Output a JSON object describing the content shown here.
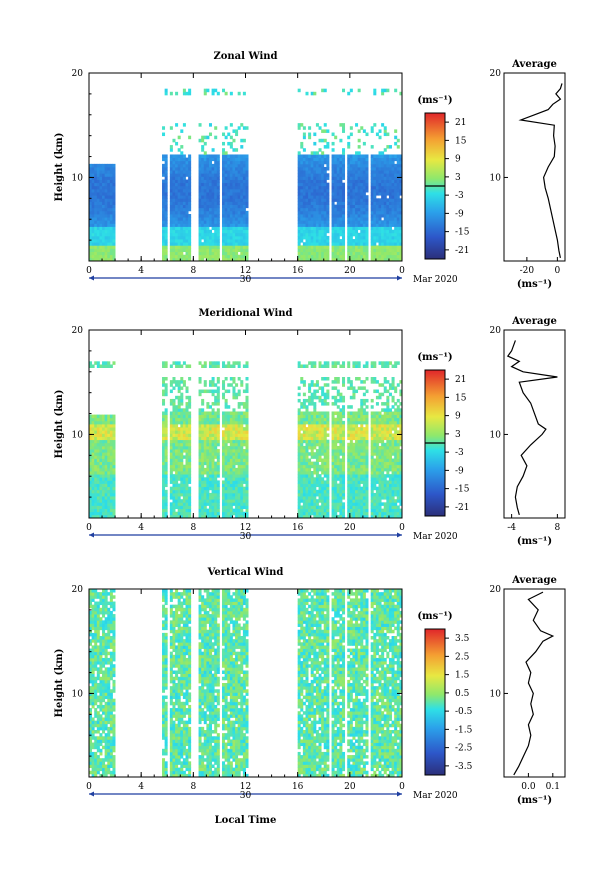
{
  "figure": {
    "xlabel": "Local Time",
    "date_label": "Mar 2020",
    "date_day": "30"
  },
  "chart_data": [
    {
      "type": "heatmap",
      "title": "Zonal Wind",
      "ylabel": "Height (km)",
      "colorbar_unit": "(ms⁻¹)",
      "colorbar_ticks": [
        "21",
        "15",
        "9",
        "3",
        "-3",
        "-9",
        "-15",
        "-21"
      ],
      "colorbar_range": [
        -24,
        24
      ],
      "xlim": [
        0,
        24
      ],
      "ylim": [
        2,
        20
      ],
      "x_tick_labels": [
        "0",
        "4",
        "8",
        "12",
        "16",
        "20",
        "0"
      ],
      "y_tick_labels": [
        "20",
        "10"
      ],
      "profile_title": "Average",
      "profile_xlim": [
        -35,
        5
      ],
      "profile_x_tick_labels": [
        "-20",
        "0"
      ],
      "profile_xlabel": "(ms⁻¹)",
      "profile": [
        {
          "h": 2.3,
          "v": 2.0
        },
        {
          "h": 3.0,
          "v": 1.0
        },
        {
          "h": 4.0,
          "v": 0.0
        },
        {
          "h": 5.0,
          "v": -1.5
        },
        {
          "h": 6.0,
          "v": -3.0
        },
        {
          "h": 7.0,
          "v": -4.5
        },
        {
          "h": 8.0,
          "v": -6.0
        },
        {
          "h": 9.0,
          "v": -8.0
        },
        {
          "h": 10.0,
          "v": -9.0
        },
        {
          "h": 11.0,
          "v": -6.0
        },
        {
          "h": 12.0,
          "v": -2.0
        },
        {
          "h": 13.0,
          "v": -1.5
        },
        {
          "h": 14.0,
          "v": -2.5
        },
        {
          "h": 15.0,
          "v": -2.0
        },
        {
          "h": 15.5,
          "v": -24.0
        },
        {
          "h": 16.0,
          "v": -15.0
        },
        {
          "h": 16.5,
          "v": -6.0
        },
        {
          "h": 17.0,
          "v": -3.0
        },
        {
          "h": 17.5,
          "v": 2.0
        },
        {
          "h": 18.0,
          "v": -1.0
        },
        {
          "h": 18.5,
          "v": 2.0
        },
        {
          "h": 19.0,
          "v": 3.0
        }
      ]
    },
    {
      "type": "heatmap",
      "title": "Meridional Wind",
      "ylabel": "Height (km)",
      "colorbar_unit": "(ms⁻¹)",
      "colorbar_ticks": [
        "21",
        "15",
        "9",
        "3",
        "-3",
        "-9",
        "-15",
        "-21"
      ],
      "colorbar_range": [
        -24,
        24
      ],
      "xlim": [
        0,
        24
      ],
      "ylim": [
        2,
        20
      ],
      "x_tick_labels": [
        "0",
        "4",
        "8",
        "12",
        "16",
        "20",
        "0"
      ],
      "y_tick_labels": [
        "20",
        "10"
      ],
      "profile_title": "Average",
      "profile_xlim": [
        -6,
        10
      ],
      "profile_x_tick_labels": [
        "-4",
        "8"
      ],
      "profile_xlabel": "(ms⁻¹)",
      "profile": [
        {
          "h": 2.3,
          "v": -2.0
        },
        {
          "h": 3.0,
          "v": -2.5
        },
        {
          "h": 4.0,
          "v": -3.0
        },
        {
          "h": 5.0,
          "v": -2.5
        },
        {
          "h": 6.0,
          "v": -1.0
        },
        {
          "h": 7.0,
          "v": 0.0
        },
        {
          "h": 8.0,
          "v": -1.5
        },
        {
          "h": 9.0,
          "v": 1.0
        },
        {
          "h": 10.0,
          "v": 4.0
        },
        {
          "h": 10.5,
          "v": 5.0
        },
        {
          "h": 11.0,
          "v": 3.0
        },
        {
          "h": 12.0,
          "v": 2.0
        },
        {
          "h": 13.0,
          "v": 1.0
        },
        {
          "h": 14.0,
          "v": -1.0
        },
        {
          "h": 15.0,
          "v": -2.0
        },
        {
          "h": 15.5,
          "v": 8.0
        },
        {
          "h": 16.0,
          "v": -1.0
        },
        {
          "h": 16.5,
          "v": -4.0
        },
        {
          "h": 17.0,
          "v": -2.0
        },
        {
          "h": 17.5,
          "v": -5.0
        },
        {
          "h": 18.0,
          "v": -4.0
        },
        {
          "h": 19.0,
          "v": -3.0
        }
      ]
    },
    {
      "type": "heatmap",
      "title": "Vertical Wind",
      "ylabel": "Height (km)",
      "colorbar_unit": "(ms⁻¹)",
      "colorbar_ticks": [
        "3.5",
        "2.5",
        "1.5",
        "0.5",
        "-0.5",
        "-1.5",
        "-2.5",
        "-3.5"
      ],
      "colorbar_range": [
        -4,
        4
      ],
      "xlim": [
        0,
        24
      ],
      "ylim": [
        2,
        20
      ],
      "x_tick_labels": [
        "0",
        "4",
        "8",
        "12",
        "16",
        "20",
        "0"
      ],
      "y_tick_labels": [
        "20",
        "10"
      ],
      "profile_title": "Average",
      "profile_xlim": [
        -0.1,
        0.15
      ],
      "profile_x_tick_labels": [
        "0.0",
        "0.1"
      ],
      "profile_xlabel": "(ms⁻¹)",
      "profile": [
        {
          "h": 2.2,
          "v": -0.06
        },
        {
          "h": 3.0,
          "v": -0.04
        },
        {
          "h": 4.0,
          "v": -0.02
        },
        {
          "h": 5.0,
          "v": 0.0
        },
        {
          "h": 6.0,
          "v": 0.01
        },
        {
          "h": 7.0,
          "v": 0.0
        },
        {
          "h": 8.0,
          "v": 0.02
        },
        {
          "h": 9.0,
          "v": 0.01
        },
        {
          "h": 10.0,
          "v": 0.02
        },
        {
          "h": 11.0,
          "v": 0.0
        },
        {
          "h": 12.0,
          "v": 0.01
        },
        {
          "h": 13.0,
          "v": -0.01
        },
        {
          "h": 14.0,
          "v": 0.03
        },
        {
          "h": 15.0,
          "v": 0.06
        },
        {
          "h": 15.5,
          "v": 0.1
        },
        {
          "h": 16.0,
          "v": 0.05
        },
        {
          "h": 17.0,
          "v": 0.02
        },
        {
          "h": 18.0,
          "v": 0.04
        },
        {
          "h": 19.0,
          "v": 0.0
        },
        {
          "h": 19.7,
          "v": 0.06
        }
      ]
    }
  ]
}
